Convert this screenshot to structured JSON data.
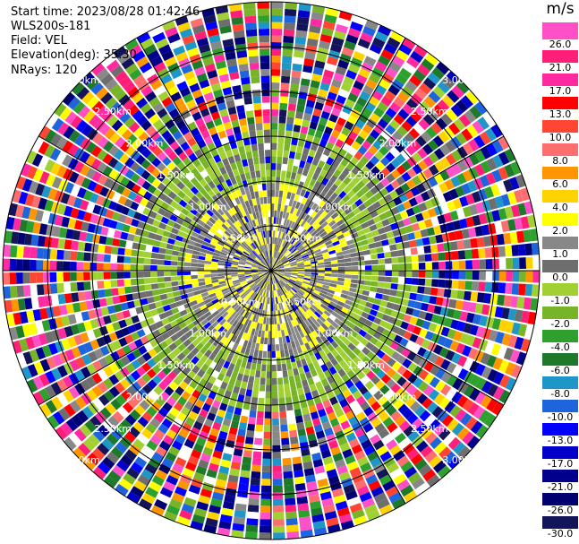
{
  "header": {
    "start_time": "Start time: 2023/08/28 01:42:46",
    "instrument": "WLS200s-181",
    "field": "Field: VEL",
    "elevation": "Elevation(deg): 35.30",
    "nrays": "NRays: 120"
  },
  "chart_data": {
    "type": "heatmap",
    "projection": "polar-ppi",
    "field": "VEL",
    "unit": "m/s",
    "nrays": 120,
    "range_rings_km": [
      0.5,
      1.0,
      1.5,
      2.0,
      2.5,
      3.0
    ],
    "ring_labels": [
      "0.50km",
      "1.00km",
      "1.50km",
      "2.00km",
      "2.50km",
      "3.00km"
    ],
    "max_range_km": 3.0,
    "spoke_angles_deg": [
      0,
      30,
      60,
      90,
      120,
      150,
      180,
      210,
      240,
      270,
      300,
      330
    ],
    "colorbar": {
      "unit": "m/s",
      "levels": [
        -30.0,
        -26.0,
        -21.0,
        -17.0,
        -13.0,
        -10.0,
        -8.0,
        -6.0,
        -4.0,
        -2.0,
        -1.0,
        0.0,
        1.0,
        2.0,
        4.0,
        6.0,
        8.0,
        10.0,
        13.0,
        17.0,
        21.0,
        26.0
      ],
      "labels": [
        "-30.0",
        "-26.0",
        "-21.0",
        "-17.0",
        "-13.0",
        "-10.0",
        "-8.0",
        "-6.0",
        "-4.0",
        "-2.0",
        "-1.0",
        "0.0",
        "1.0",
        "2.0",
        "4.0",
        "6.0",
        "8.0",
        "10.0",
        "13.0",
        "17.0",
        "21.0",
        "26.0"
      ],
      "colors": [
        "#14145a",
        "#000070",
        "#00008c",
        "#0000c8",
        "#0000ff",
        "#1e64dc",
        "#1e96c8",
        "#1e7a2a",
        "#2ea02e",
        "#78b428",
        "#a0d032",
        "#6e6e6e",
        "#888888",
        "#ffff00",
        "#ffd200",
        "#ff9600",
        "#ff6e6e",
        "#ff4632",
        "#ff0000",
        "#ff2aa0",
        "#ff1e78",
        "#ff50c8"
      ]
    },
    "region_value_ranges": [
      {
        "range_km": [
          0.0,
          1.0
        ],
        "dominant_values": [
          0.0,
          1.0,
          2.0
        ]
      },
      {
        "range_km": [
          1.0,
          1.6
        ],
        "dominant_values": [
          -2.0,
          -1.0,
          0.0
        ]
      },
      {
        "range_km": [
          1.6,
          3.0
        ],
        "dominant_values": [
          -30.0,
          26.0
        ]
      }
    ]
  }
}
